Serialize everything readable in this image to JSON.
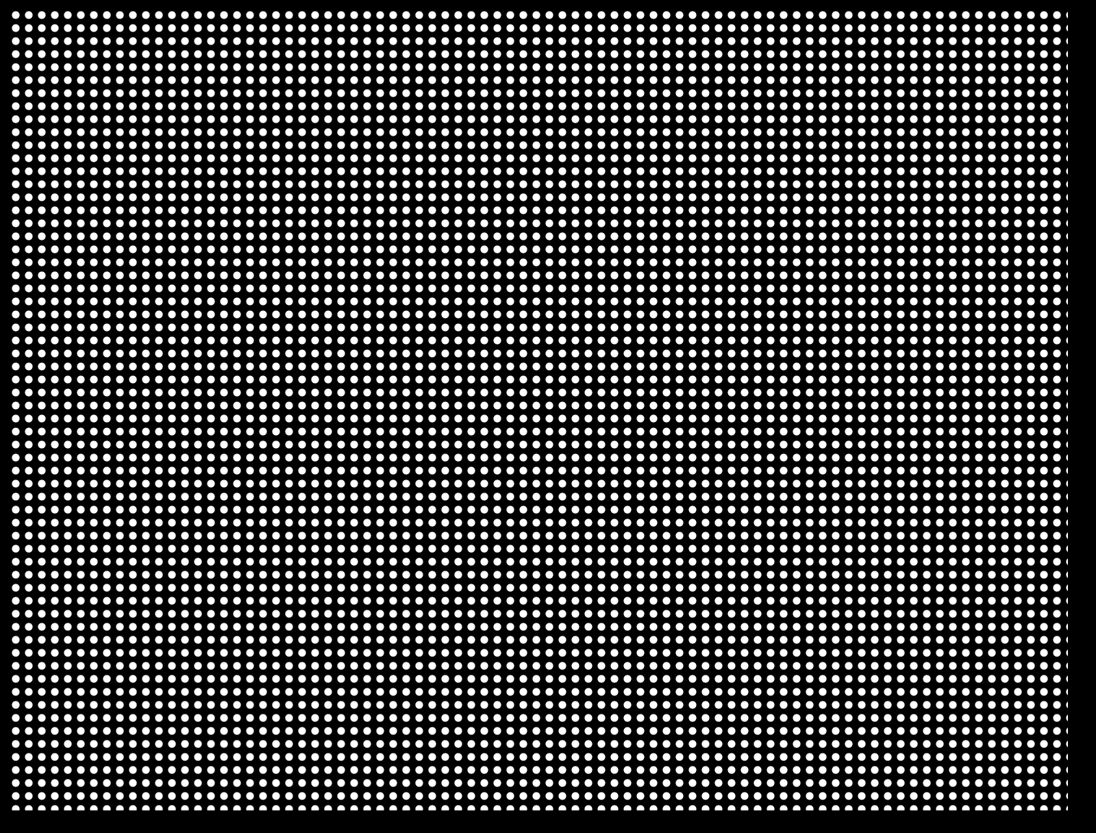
{
  "pattern": {
    "background_color": "#000000",
    "dot_color": "#ffffff"
  }
}
